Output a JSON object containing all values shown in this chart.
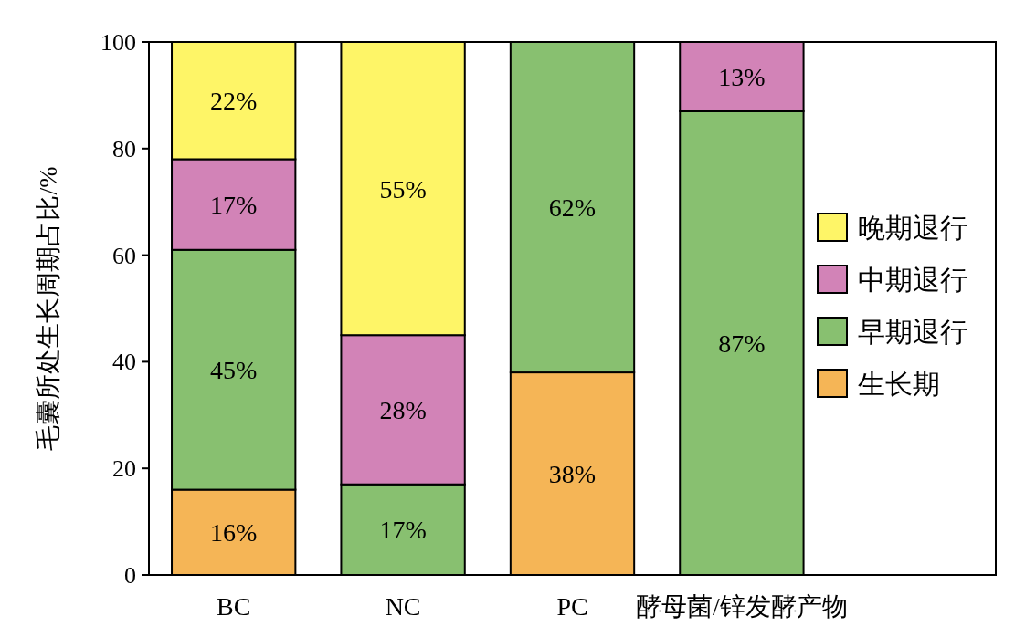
{
  "chart_data": {
    "type": "bar",
    "stacked": true,
    "ylabel": "毛囊所处生长周期占比/%",
    "categories": [
      "BC",
      "NC",
      "PC",
      "酵母菌/锌发酵产物"
    ],
    "series": [
      {
        "name": "生长期",
        "color": "#f5b556",
        "values": [
          16,
          null,
          38,
          null
        ],
        "value_labels": [
          "16%",
          null,
          "38%",
          null
        ]
      },
      {
        "name": "早期退行",
        "color": "#88c070",
        "values": [
          45,
          17,
          62,
          87
        ],
        "value_labels": [
          "45%",
          "17%",
          "62%",
          "87%"
        ]
      },
      {
        "name": "中期退行",
        "color": "#d283b7",
        "values": [
          17,
          28,
          null,
          13
        ],
        "value_labels": [
          "17%",
          "28%",
          null,
          "13%"
        ]
      },
      {
        "name": "晚期退行",
        "color": "#fef567",
        "values": [
          22,
          55,
          null,
          null
        ],
        "value_labels": [
          "22%",
          "55%",
          null,
          null
        ]
      }
    ],
    "ylim": [
      0,
      100
    ],
    "yticks": [
      0,
      20,
      40,
      60,
      80,
      100
    ],
    "legend": "right",
    "grid": false
  }
}
